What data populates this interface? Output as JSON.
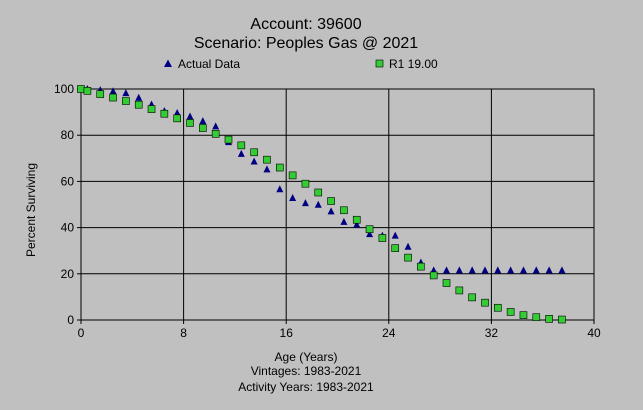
{
  "chart_data": {
    "type": "scatter",
    "title": "Account: 39600",
    "subtitle": "Scenario: Peoples Gas @ 2021",
    "xlabel": "Age (Years)",
    "ylabel": "Percent Surviving",
    "footer": [
      "Vintages: 1983-2021",
      "Activity Years: 1983-2021"
    ],
    "xlim": [
      0,
      40
    ],
    "ylim": [
      0,
      100
    ],
    "xticks": [
      0,
      8,
      16,
      24,
      32,
      40
    ],
    "yticks": [
      0,
      20,
      40,
      60,
      80,
      100
    ],
    "grid": true,
    "legend_position": "top",
    "series": [
      {
        "name": "Actual Data",
        "marker": "triangle",
        "color": "#000080",
        "x": [
          0,
          0.5,
          1.5,
          2.5,
          3.5,
          4.5,
          5.5,
          6.5,
          7.5,
          8.5,
          9.5,
          10.5,
          11.5,
          12.5,
          13.5,
          14.5,
          15.5,
          16.5,
          17.5,
          18.5,
          19.5,
          20.5,
          21.5,
          22.5,
          23.5,
          24.5,
          25.5,
          26.5,
          27.5,
          28.5,
          29.5,
          30.5,
          31.5,
          32.5,
          33.5,
          34.5,
          35.5,
          36.5,
          37.5
        ],
        "y": [
          100,
          100,
          99.5,
          99,
          98.2,
          96.2,
          93.3,
          90.4,
          89.6,
          88.1,
          86.1,
          83.8,
          77,
          71.9,
          68.6,
          65.2,
          56.6,
          52.8,
          50.6,
          49.9,
          47,
          42.5,
          41.3,
          37.2,
          36.5,
          36.5,
          31.7,
          24.9,
          21.5,
          21.5,
          21.5,
          21.5,
          21.5,
          21.5,
          21.5,
          21.5,
          21.5,
          21.5,
          21.5
        ]
      },
      {
        "name": "R1 19.00",
        "marker": "square",
        "color": "#33cc33",
        "x": [
          0,
          0.5,
          1.5,
          2.5,
          3.5,
          4.5,
          5.5,
          6.5,
          7.5,
          8.5,
          9.5,
          10.5,
          11.5,
          12.5,
          13.5,
          14.5,
          15.5,
          16.5,
          17.5,
          18.5,
          19.5,
          20.5,
          21.5,
          22.5,
          23.5,
          24.5,
          25.5,
          26.5,
          27.5,
          28.5,
          29.5,
          30.5,
          31.5,
          32.5,
          33.5,
          34.5,
          35.5,
          36.5,
          37.5
        ],
        "y": [
          100,
          99.2,
          97.8,
          96.3,
          94.8,
          93.2,
          91.3,
          89.3,
          87.3,
          85.3,
          83.1,
          80.6,
          78.1,
          75.6,
          72.6,
          69.4,
          66,
          62.6,
          59,
          55.2,
          51.5,
          47.5,
          43.4,
          39.3,
          35.5,
          31.1,
          27,
          23.1,
          19.3,
          16,
          12.8,
          9.8,
          7.5,
          5.3,
          3.5,
          2.1,
          1.2,
          0.5,
          0.2
        ]
      }
    ]
  }
}
